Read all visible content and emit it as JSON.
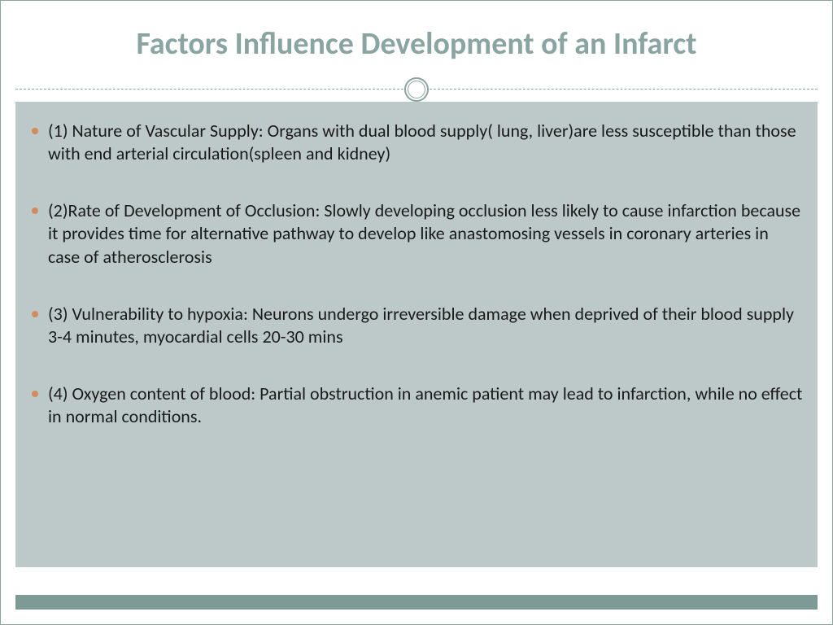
{
  "slide": {
    "title": "Factors Influence Development of an Infarct",
    "title_color": "#8aa5a1",
    "title_fontsize": 38,
    "background_color": "#ffffff",
    "body_background": "#bcc9c8",
    "footer_bar_color": "#7e9a96",
    "bullet_color": "#d38b5d",
    "divider_color": "#8aa5a1",
    "body_fontsize": 22,
    "text_color": "#1a1a1a",
    "bullets": [
      "(1) Nature of Vascular Supply: Organs with dual blood supply( lung, liver)are less susceptible than those with end arterial circulation(spleen and kidney)",
      "(2)Rate of Development of Occlusion: Slowly developing occlusion less likely to cause infarction because it provides time for alternative pathway to develop like anastomosing vessels in coronary arteries in case of atherosclerosis",
      " (3) Vulnerability to hypoxia: Neurons undergo irreversible damage when deprived of their blood supply 3-4 minutes, myocardial cells 20-30 mins",
      "(4) Oxygen content of blood: Partial obstruction in anemic patient may lead to infarction, while no effect in normal conditions."
    ]
  }
}
